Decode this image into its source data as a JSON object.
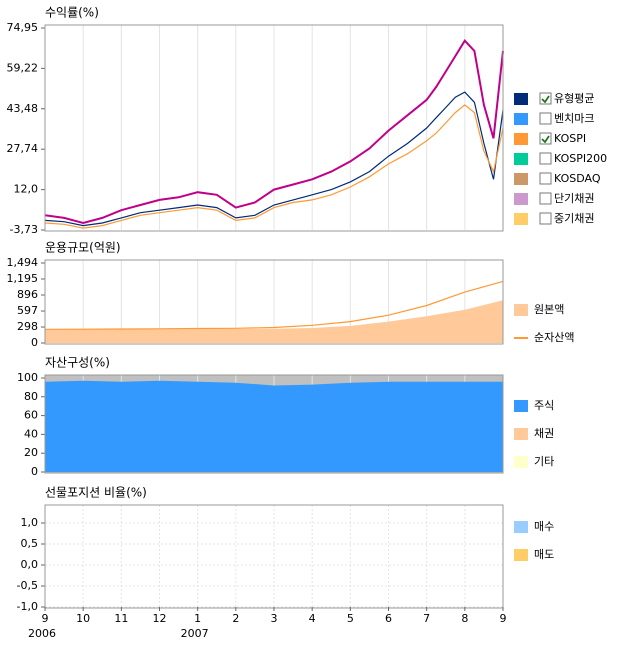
{
  "chart_data": [
    {
      "type": "line",
      "title": "수익률(%)",
      "x": [
        0,
        0.5,
        1,
        1.5,
        2,
        2.5,
        3,
        3.5,
        4,
        4.5,
        5,
        5.5,
        6,
        6.5,
        7,
        7.5,
        8,
        8.5,
        9,
        9.5,
        10,
        10.25,
        10.5,
        10.75,
        11,
        11.25,
        11.5,
        11.75,
        12
      ],
      "ylim": [
        -3.73,
        74.95
      ],
      "yticks": [
        {
          "value": 74.95,
          "label": "74,95"
        },
        {
          "value": 59.22,
          "label": "59,22"
        },
        {
          "value": 43.48,
          "label": "43,48"
        },
        {
          "value": 27.74,
          "label": "27,74"
        },
        {
          "value": 12,
          "label": "12,0"
        },
        {
          "value": -3.73,
          "label": "-3,73"
        }
      ],
      "series": [
        {
          "color": "#c0008a",
          "values": [
            2,
            1,
            -1,
            1,
            4,
            6,
            8,
            9,
            11,
            10,
            5,
            7,
            12,
            14,
            16,
            19,
            23,
            28,
            35,
            41,
            47,
            52,
            58,
            64,
            70,
            66,
            45,
            32,
            66
          ]
        },
        {
          "name": "유형평균",
          "color": "#002a7a",
          "checked": true,
          "values": [
            0,
            -0.5,
            -2,
            -1,
            1,
            3,
            4,
            5,
            6,
            5,
            1,
            2,
            6,
            8,
            10,
            12,
            15,
            19,
            25,
            30,
            36,
            40,
            44,
            48,
            50,
            46,
            30,
            16,
            43
          ]
        },
        {
          "name": "벤치마크",
          "color": "#3399ff",
          "checked": false
        },
        {
          "name": "KOSPI",
          "color": "#ff9933",
          "checked": true,
          "values": [
            -1,
            -1.5,
            -3,
            -2,
            0,
            2,
            3,
            4,
            5,
            4,
            0,
            1,
            5,
            7,
            8,
            10,
            13,
            17,
            22,
            26,
            31,
            34,
            38,
            42,
            45,
            42,
            27,
            19,
            36
          ]
        },
        {
          "name": "KOSPI200",
          "color": "#00cc99",
          "checked": false
        },
        {
          "name": "KOSDAQ",
          "color": "#cc9966",
          "checked": false
        },
        {
          "name": "단기채권",
          "color": "#cc99cc",
          "checked": false
        },
        {
          "name": "중기채권",
          "color": "#ffcc66",
          "checked": false
        }
      ]
    },
    {
      "type": "mixed",
      "title": "운용규모(억원)",
      "x": [
        0,
        1,
        2,
        3,
        4,
        5,
        6,
        7,
        8,
        9,
        10,
        11,
        12
      ],
      "ylim": [
        0,
        1494
      ],
      "yticks": [
        {
          "value": 1494,
          "label": "1,494"
        },
        {
          "value": 1195,
          "label": "1,195"
        },
        896,
        597,
        298,
        0
      ],
      "series": [
        {
          "name": "원본액",
          "type": "area",
          "color": "#ffc999",
          "values": [
            250,
            252,
            255,
            258,
            260,
            262,
            265,
            280,
            320,
            400,
            500,
            620,
            800
          ]
        },
        {
          "name": "순자산액",
          "type": "line",
          "color": "#ff9933",
          "values": [
            255,
            258,
            262,
            265,
            270,
            275,
            290,
            330,
            400,
            520,
            700,
            950,
            1150
          ]
        }
      ]
    },
    {
      "type": "stacked_area",
      "title": "자산구성(%)",
      "x": [
        0,
        1,
        2,
        3,
        4,
        5,
        6,
        7,
        8,
        9,
        10,
        11,
        12
      ],
      "ylim": [
        0,
        100
      ],
      "yticks": [
        100,
        80,
        60,
        40,
        20,
        0
      ],
      "series": [
        {
          "name": "주식",
          "color": "#3399ff",
          "values": [
            96,
            97,
            96,
            97,
            96,
            95,
            92,
            93,
            95,
            96,
            96,
            96,
            96
          ]
        },
        {
          "name": "채권",
          "color": "#ffc999"
        },
        {
          "name": "기타",
          "color": "#ffffcc"
        }
      ]
    },
    {
      "type": "line",
      "title": "선물포지션 비율(%)",
      "ylim": [
        -1,
        1
      ],
      "yticks": [
        {
          "value": 1,
          "label": "1,0"
        },
        {
          "value": 0.5,
          "label": "0,5"
        },
        {
          "value": 0,
          "label": "0,0"
        },
        {
          "value": -0.5,
          "label": "-0,5"
        },
        {
          "value": -1,
          "label": "-1,0"
        }
      ],
      "grid": true,
      "series": [
        {
          "name": "매수",
          "color": "#99ccff"
        },
        {
          "name": "매도",
          "color": "#ffcc66"
        }
      ],
      "xlim": [
        0,
        12
      ],
      "xticks": [
        {
          "value": 0,
          "label": "9"
        },
        {
          "value": 1,
          "label": "10"
        },
        {
          "value": 2,
          "label": "11"
        },
        {
          "value": 3,
          "label": "12"
        },
        {
          "value": 4,
          "label": "1"
        },
        {
          "value": 5,
          "label": "2"
        },
        {
          "value": 6,
          "label": "3"
        },
        {
          "value": 7,
          "label": "4"
        },
        {
          "value": 8,
          "label": "5"
        },
        {
          "value": 9,
          "label": "6"
        },
        {
          "value": 10,
          "label": "7"
        },
        {
          "value": 11,
          "label": "8"
        },
        {
          "value": 12,
          "label": "9"
        }
      ],
      "year_labels": [
        {
          "value": 0,
          "label": "2006"
        },
        {
          "value": 4,
          "label": "2007"
        }
      ]
    }
  ]
}
